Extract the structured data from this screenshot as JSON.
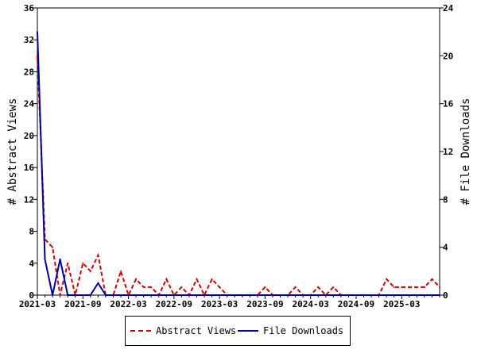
{
  "chart_data": {
    "type": "line",
    "x": [
      "2021-03",
      "2021-04",
      "2021-05",
      "2021-06",
      "2021-07",
      "2021-08",
      "2021-09",
      "2021-10",
      "2021-11",
      "2021-12",
      "2022-01",
      "2022-02",
      "2022-03",
      "2022-04",
      "2022-05",
      "2022-06",
      "2022-07",
      "2022-08",
      "2022-09",
      "2022-10",
      "2022-11",
      "2022-12",
      "2023-01",
      "2023-02",
      "2023-03",
      "2023-04",
      "2023-05",
      "2023-06",
      "2023-07",
      "2023-08",
      "2023-09",
      "2023-10",
      "2023-11",
      "2023-12",
      "2024-01",
      "2024-02",
      "2024-03",
      "2024-04",
      "2024-05",
      "2024-06",
      "2024-07",
      "2024-08",
      "2024-09",
      "2024-10",
      "2024-11",
      "2024-12",
      "2025-01",
      "2025-02",
      "2025-03",
      "2025-04",
      "2025-05",
      "2025-06",
      "2025-07",
      "2025-08"
    ],
    "x_ticks": [
      "2021-03",
      "2021-09",
      "2022-03",
      "2022-09",
      "2023-03",
      "2023-09",
      "2024-03",
      "2024-09",
      "2025-03"
    ],
    "series": [
      {
        "name": "Abstract Views",
        "axis": "left",
        "color": "#cc0000",
        "style": "dashed",
        "values": [
          30,
          7,
          6,
          0,
          4,
          0,
          4,
          3,
          5,
          0,
          0,
          3,
          0,
          2,
          1,
          1,
          0,
          2,
          0,
          1,
          0,
          2,
          0,
          2,
          1,
          0,
          0,
          0,
          0,
          0,
          1,
          0,
          0,
          0,
          1,
          0,
          0,
          1,
          0,
          1,
          0,
          0,
          0,
          0,
          0,
          0,
          2,
          1,
          1,
          1,
          1,
          1,
          2,
          1
        ]
      },
      {
        "name": "File Downloads",
        "axis": "right",
        "color": "#000099",
        "style": "solid",
        "values": [
          22,
          3,
          0,
          3,
          0,
          0,
          0,
          0,
          1,
          0,
          0,
          0,
          0,
          0,
          0,
          0,
          0,
          0,
          0,
          0,
          0,
          0,
          0,
          0,
          0,
          0,
          0,
          0,
          0,
          0,
          0,
          0,
          0,
          0,
          0,
          0,
          0,
          0,
          0,
          0,
          0,
          0,
          0,
          0,
          0,
          0,
          0,
          0,
          0,
          0,
          0,
          0,
          0,
          0
        ]
      }
    ],
    "ylabel_left": "# Abstract Views",
    "ylabel_right": "# File Downloads",
    "ylim_left": [
      0,
      36
    ],
    "ylim_right": [
      0,
      24
    ],
    "yticks_left": [
      0,
      4,
      8,
      12,
      16,
      20,
      24,
      28,
      32,
      36
    ],
    "yticks_right": [
      0,
      4,
      8,
      12,
      16,
      20,
      24
    ],
    "grid": false,
    "legend_position": "bottom"
  }
}
